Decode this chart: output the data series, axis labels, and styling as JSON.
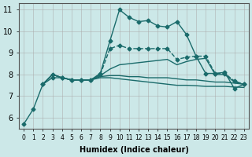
{
  "xlabel": "Humidex (Indice chaleur)",
  "xlim": [
    -0.5,
    23.5
  ],
  "ylim": [
    5.5,
    11.3
  ],
  "xticks": [
    0,
    1,
    2,
    3,
    4,
    5,
    6,
    7,
    8,
    9,
    10,
    11,
    12,
    13,
    14,
    15,
    16,
    17,
    18,
    19,
    20,
    21,
    22,
    23
  ],
  "yticks": [
    6,
    7,
    8,
    9,
    10,
    11
  ],
  "background_color": "#cce8e8",
  "grid_color": "#aaaaaa",
  "line_color": "#1a6b6b",
  "series": [
    {
      "x": [
        0,
        1,
        2,
        3,
        4,
        5,
        6,
        7,
        8,
        9,
        10,
        11,
        12,
        13,
        14,
        15,
        16,
        17,
        18,
        19,
        20,
        21,
        22,
        23
      ],
      "y": [
        5.7,
        6.4,
        7.55,
        7.85,
        7.85,
        7.75,
        7.75,
        7.75,
        8.05,
        9.55,
        11.0,
        10.65,
        10.45,
        10.5,
        10.25,
        10.2,
        10.45,
        9.85,
        8.85,
        8.05,
        8.05,
        8.1,
        7.35,
        7.55
      ],
      "marker": "D",
      "markersize": 2.5,
      "linewidth": 1.0,
      "linestyle": "-"
    },
    {
      "x": [
        2,
        3,
        4,
        5,
        6,
        7,
        8,
        9,
        10,
        11,
        12,
        13,
        14,
        15,
        16,
        17,
        18,
        19,
        20,
        21,
        22,
        23
      ],
      "y": [
        7.55,
        8.0,
        7.85,
        7.75,
        7.75,
        7.75,
        8.0,
        9.2,
        9.35,
        9.2,
        9.2,
        9.2,
        9.2,
        9.2,
        8.7,
        8.8,
        8.85,
        8.85,
        8.05,
        8.05,
        7.7,
        7.55
      ],
      "marker": "D",
      "markersize": 2.5,
      "linewidth": 1.0,
      "linestyle": "--"
    },
    {
      "x": [
        2,
        3,
        4,
        5,
        6,
        7,
        8,
        9,
        10,
        11,
        12,
        13,
        14,
        15,
        16,
        17,
        18,
        19,
        20,
        21,
        22,
        23
      ],
      "y": [
        7.55,
        8.0,
        7.85,
        7.75,
        7.75,
        7.75,
        7.95,
        8.25,
        8.45,
        8.5,
        8.55,
        8.6,
        8.65,
        8.7,
        8.45,
        8.6,
        8.7,
        8.75,
        8.0,
        8.0,
        7.65,
        7.55
      ],
      "marker": null,
      "markersize": 0,
      "linewidth": 1.0,
      "linestyle": "-"
    },
    {
      "x": [
        2,
        3,
        4,
        5,
        6,
        7,
        8,
        9,
        10,
        11,
        12,
        13,
        14,
        15,
        16,
        17,
        18,
        19,
        20,
        21,
        22,
        23
      ],
      "y": [
        7.55,
        8.0,
        7.85,
        7.75,
        7.75,
        7.75,
        7.9,
        7.95,
        7.95,
        7.9,
        7.9,
        7.85,
        7.85,
        7.85,
        7.8,
        7.75,
        7.75,
        7.7,
        7.65,
        7.65,
        7.6,
        7.55
      ],
      "marker": null,
      "markersize": 0,
      "linewidth": 1.0,
      "linestyle": "-"
    },
    {
      "x": [
        2,
        3,
        4,
        5,
        6,
        7,
        8,
        9,
        10,
        11,
        12,
        13,
        14,
        15,
        16,
        17,
        18,
        19,
        20,
        21,
        22,
        23
      ],
      "y": [
        7.55,
        8.0,
        7.85,
        7.75,
        7.75,
        7.75,
        7.85,
        7.85,
        7.8,
        7.75,
        7.7,
        7.65,
        7.6,
        7.55,
        7.5,
        7.5,
        7.48,
        7.45,
        7.45,
        7.45,
        7.42,
        7.4
      ],
      "marker": null,
      "markersize": 0,
      "linewidth": 1.0,
      "linestyle": "-"
    }
  ]
}
